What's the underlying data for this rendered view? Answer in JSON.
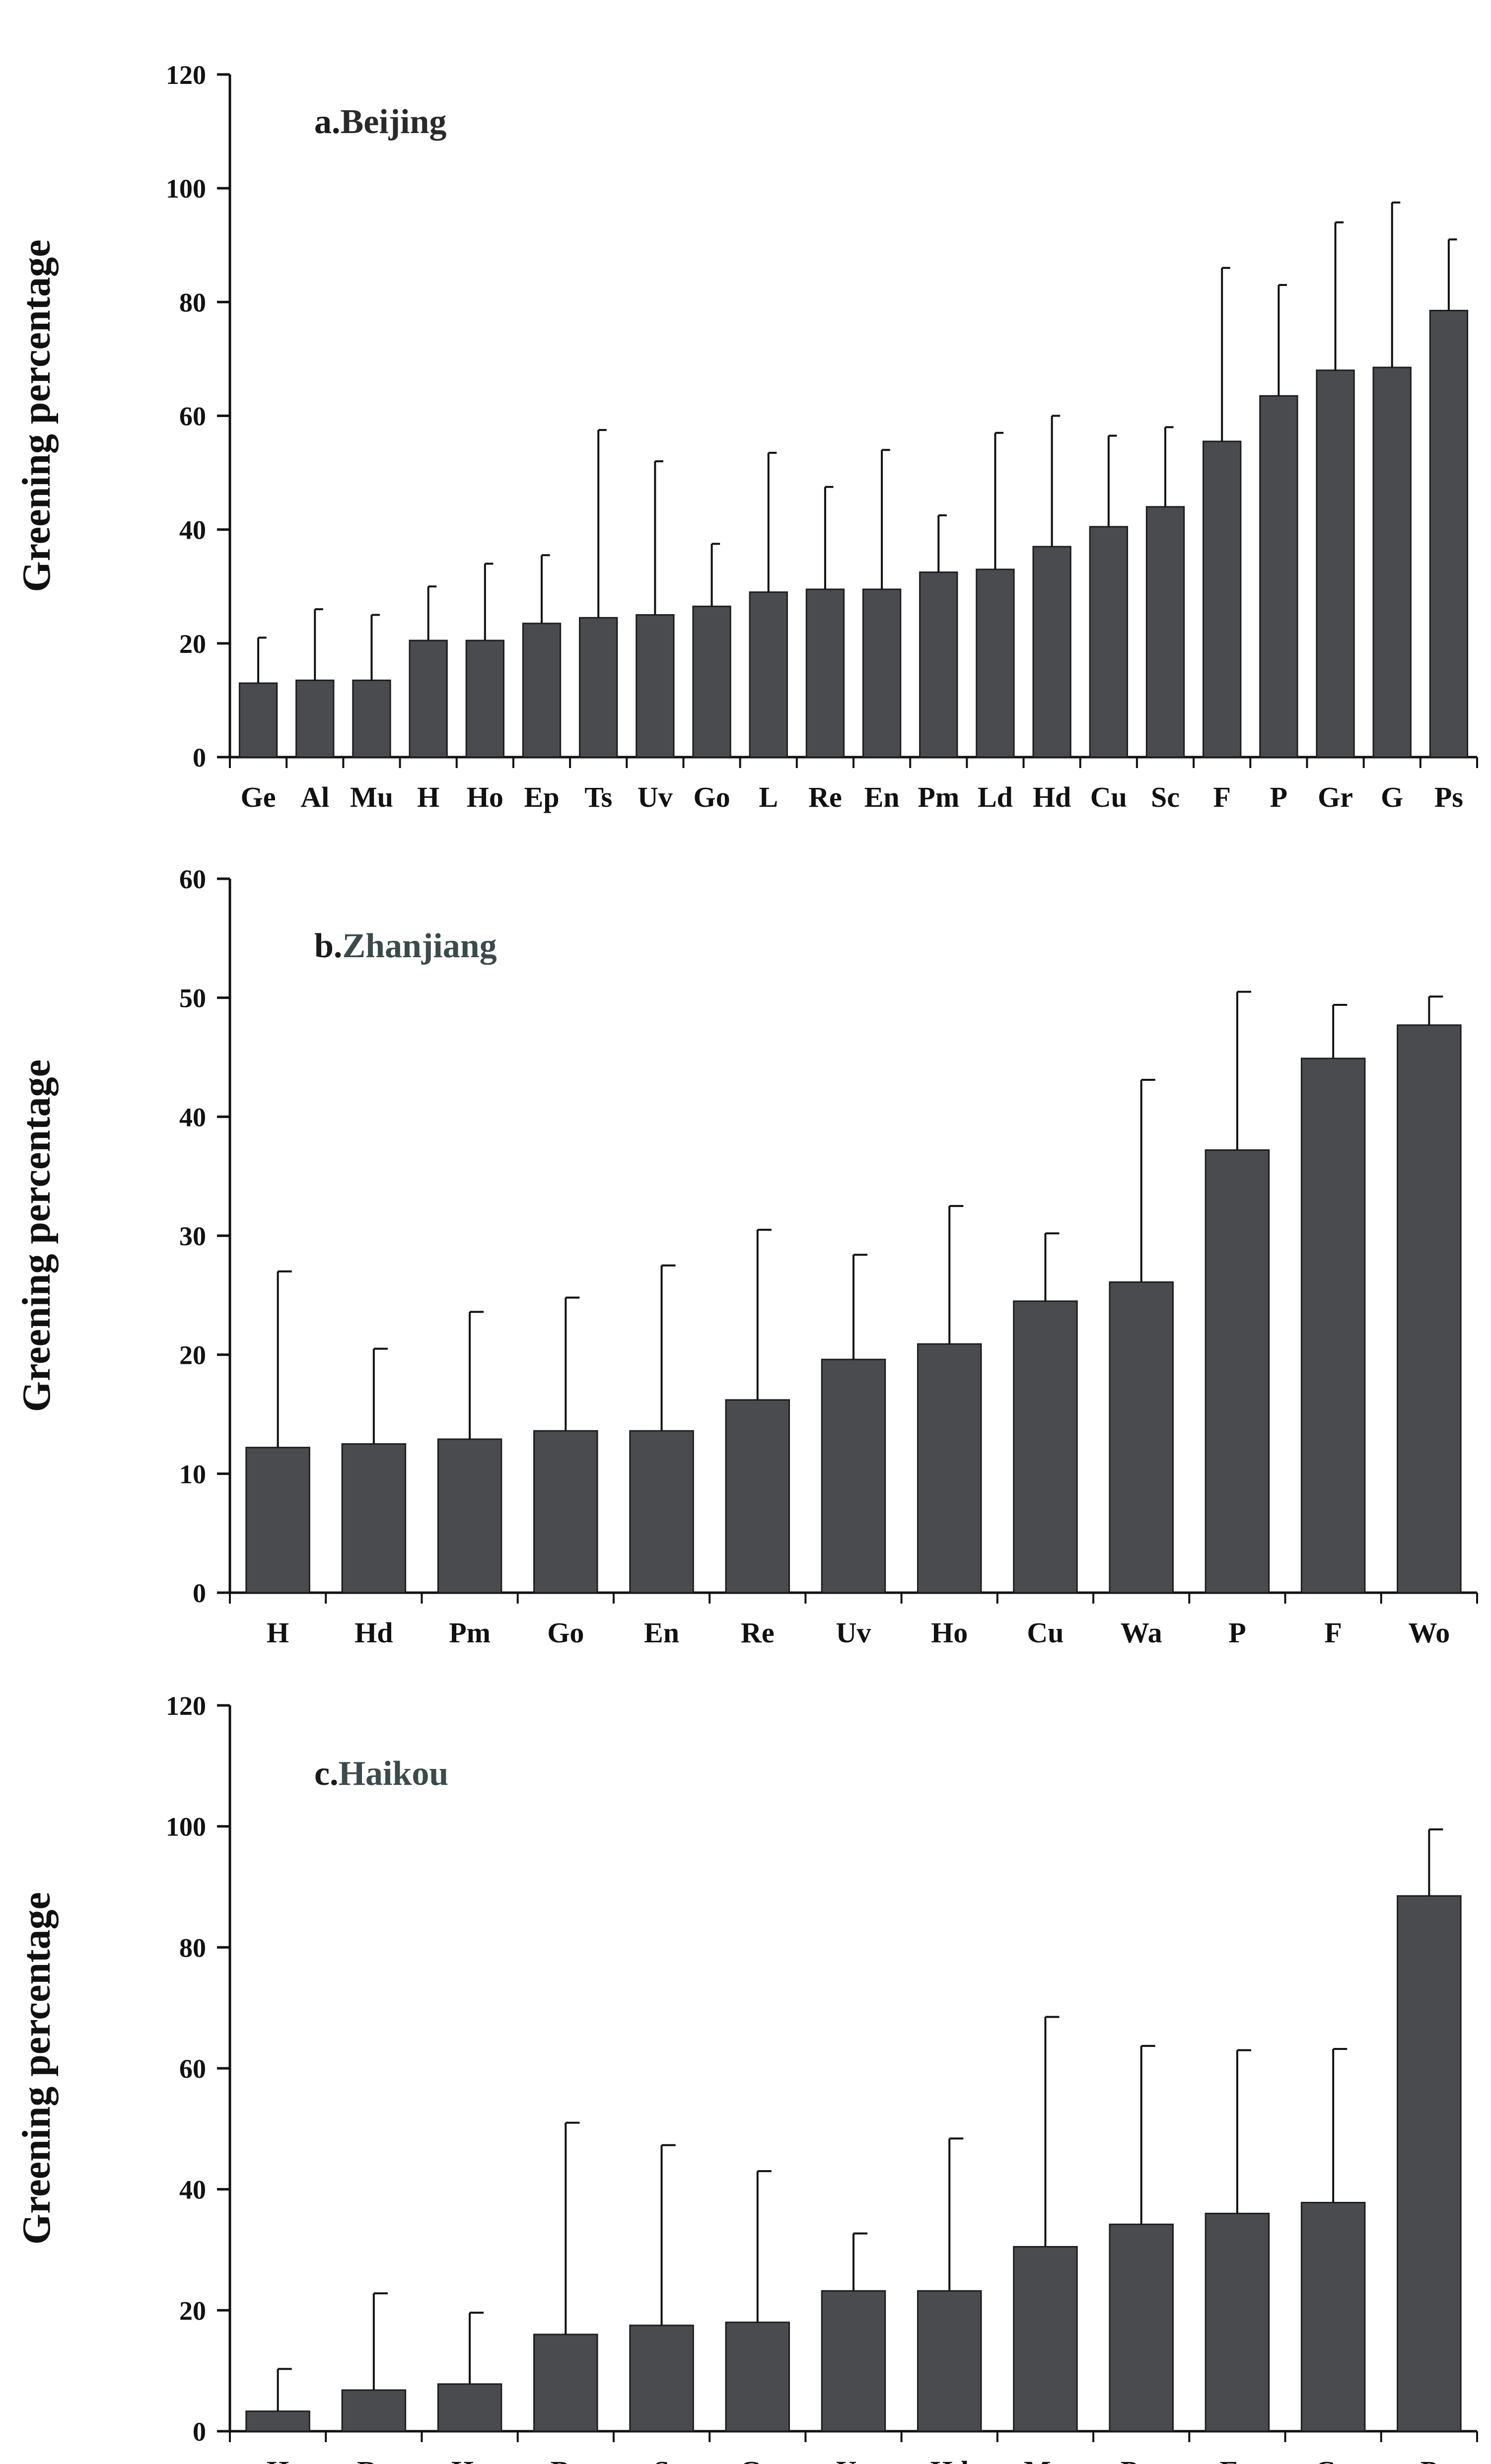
{
  "figure": {
    "colors": {
      "bar": "#4a4b4f",
      "axis": "#111111",
      "text": "#111111"
    }
  },
  "chart_data": [
    {
      "type": "bar",
      "title": "a.Beijing",
      "title_prefix": "a.",
      "title_city": "Beijing",
      "title_city_color": "#2a2a2a",
      "xlabel": "",
      "ylabel": "Greening percentage",
      "ylim": [
        0,
        120
      ],
      "yticks": [
        0,
        20,
        40,
        60,
        80,
        100,
        120
      ],
      "categories": [
        "Ge",
        "Al",
        "Mu",
        "H",
        "Ho",
        "Ep",
        "Ts",
        "Uv",
        "Go",
        "L",
        "Re",
        "En",
        "Pm",
        "Ld",
        "Hd",
        "Cu",
        "Sc",
        "F",
        "P",
        "Gr",
        "G",
        "Ps"
      ],
      "values": [
        13,
        13.5,
        13.5,
        20.5,
        20.5,
        23.5,
        24.5,
        25,
        26.5,
        29,
        29.5,
        29.5,
        32.5,
        33,
        37,
        40.5,
        44,
        55.5,
        63.5,
        68,
        68.5,
        78.5
      ],
      "errors": [
        8,
        12.5,
        11.5,
        9.5,
        13.5,
        12,
        33,
        27,
        11,
        24.5,
        18,
        24.5,
        10,
        24,
        23,
        16,
        14,
        30.5,
        19.5,
        26,
        29,
        12.5
      ]
    },
    {
      "type": "bar",
      "title": "b.Zhanjiang",
      "title_prefix": "b.",
      "title_city": "Zhanjiang",
      "title_city_color": "#3b4a4a",
      "xlabel": "",
      "ylabel": "Greening percentage",
      "ylim": [
        0,
        60
      ],
      "yticks": [
        0,
        10,
        20,
        30,
        40,
        50,
        60
      ],
      "categories": [
        "H",
        "Hd",
        "Pm",
        "Go",
        "En",
        "Re",
        "Uv",
        "Ho",
        "Cu",
        "Wa",
        "P",
        "F",
        "Wo"
      ],
      "values": [
        12.2,
        12.5,
        12.9,
        13.6,
        13.6,
        16.2,
        19.6,
        20.9,
        24.5,
        26.1,
        37.2,
        44.9,
        47.7
      ],
      "errors": [
        14.8,
        8,
        10.7,
        11.2,
        13.9,
        14.3,
        8.8,
        11.6,
        5.7,
        17,
        13.3,
        4.5,
        2.4
      ]
    },
    {
      "type": "bar",
      "title": "c.Haikou",
      "title_prefix": "c.",
      "title_city": "Haikou",
      "title_city_color": "#3b4a4a",
      "xlabel": "",
      "ylabel": "Greening percentage",
      "ylim": [
        0,
        120
      ],
      "yticks": [
        0,
        20,
        40,
        60,
        80,
        100,
        120
      ],
      "categories": [
        "H",
        "Re",
        "Ho",
        "Bs",
        "S",
        "Go",
        "Uv",
        "Hd",
        "Mu",
        "Pm",
        "En",
        "Cu",
        "P"
      ],
      "values": [
        3.3,
        6.8,
        7.8,
        16,
        17.5,
        18,
        23.2,
        23.2,
        30.5,
        34.2,
        36,
        37.8,
        88.5
      ],
      "errors": [
        7,
        16,
        11.8,
        35,
        29.8,
        25,
        9.5,
        25.2,
        38,
        29.5,
        27,
        25.4,
        11
      ]
    }
  ]
}
